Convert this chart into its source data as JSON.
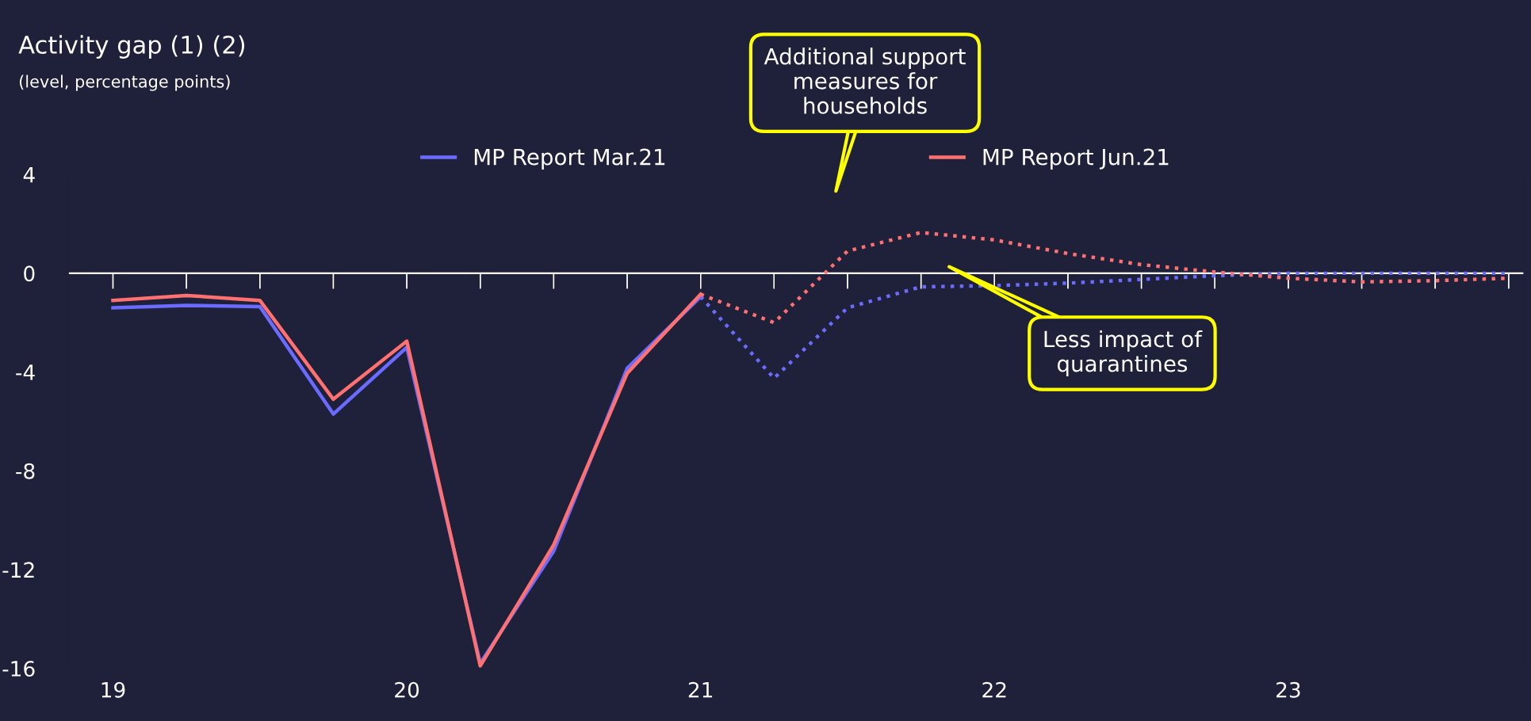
{
  "chart_data": {
    "type": "line",
    "title": "Activity gap (1) (2)",
    "subtitle": "(level, percentage points)",
    "xlim": [
      18.85,
      23.8
    ],
    "xticks": [
      19,
      20,
      21,
      22,
      23
    ],
    "ylim": [
      -16,
      4
    ],
    "yticks": [
      -16,
      -12,
      -8,
      -4,
      0,
      4
    ],
    "grid": false,
    "legend": "top",
    "marker": "none",
    "ref_lines": [
      {
        "axis": "y",
        "value": 0,
        "color": "#ffffff"
      }
    ],
    "series": [
      {
        "name": "MP Report Mar.21",
        "color": "#6b6bff",
        "line_style": "solid",
        "x": [
          19,
          19.25,
          19.5,
          19.75,
          20,
          20.25,
          20.5,
          20.75,
          21
        ],
        "values": [
          -1.4,
          -1.3,
          -1.35,
          -5.7,
          -3.0,
          -15.8,
          -11.25,
          -3.85,
          -0.95
        ]
      },
      {
        "color": "#6b6bff",
        "line_style": "dotted",
        "x": [
          21,
          21.25,
          21.5,
          21.75,
          22,
          22.25,
          22.5,
          22.75,
          23,
          23.25,
          23.5,
          23.75
        ],
        "values": [
          -0.95,
          -4.25,
          -1.4,
          -0.55,
          -0.5,
          -0.4,
          -0.25,
          -0.1,
          0,
          0,
          0,
          0
        ]
      },
      {
        "name": "MP Report Jun.21",
        "color": "#ff7070",
        "line_style": "solid",
        "x": [
          19,
          19.25,
          19.5,
          19.75,
          20,
          20.25,
          20.5,
          20.75,
          21
        ],
        "values": [
          -1.1,
          -0.9,
          -1.1,
          -5.1,
          -2.75,
          -15.9,
          -11.0,
          -4.05,
          -0.85
        ]
      },
      {
        "color": "#ff7070",
        "line_style": "dotted",
        "x": [
          21,
          21.25,
          21.5,
          21.75,
          22,
          22.25,
          22.5,
          22.75,
          23,
          23.25,
          23.5,
          23.75
        ],
        "values": [
          -0.85,
          -2.0,
          0.9,
          1.65,
          1.35,
          0.8,
          0.35,
          0.05,
          -0.2,
          -0.35,
          -0.3,
          -0.2
        ]
      }
    ],
    "annotations": [
      "Additional support\nmeasures for\nhouseholds",
      "Less impact of\nquarantines"
    ]
  }
}
